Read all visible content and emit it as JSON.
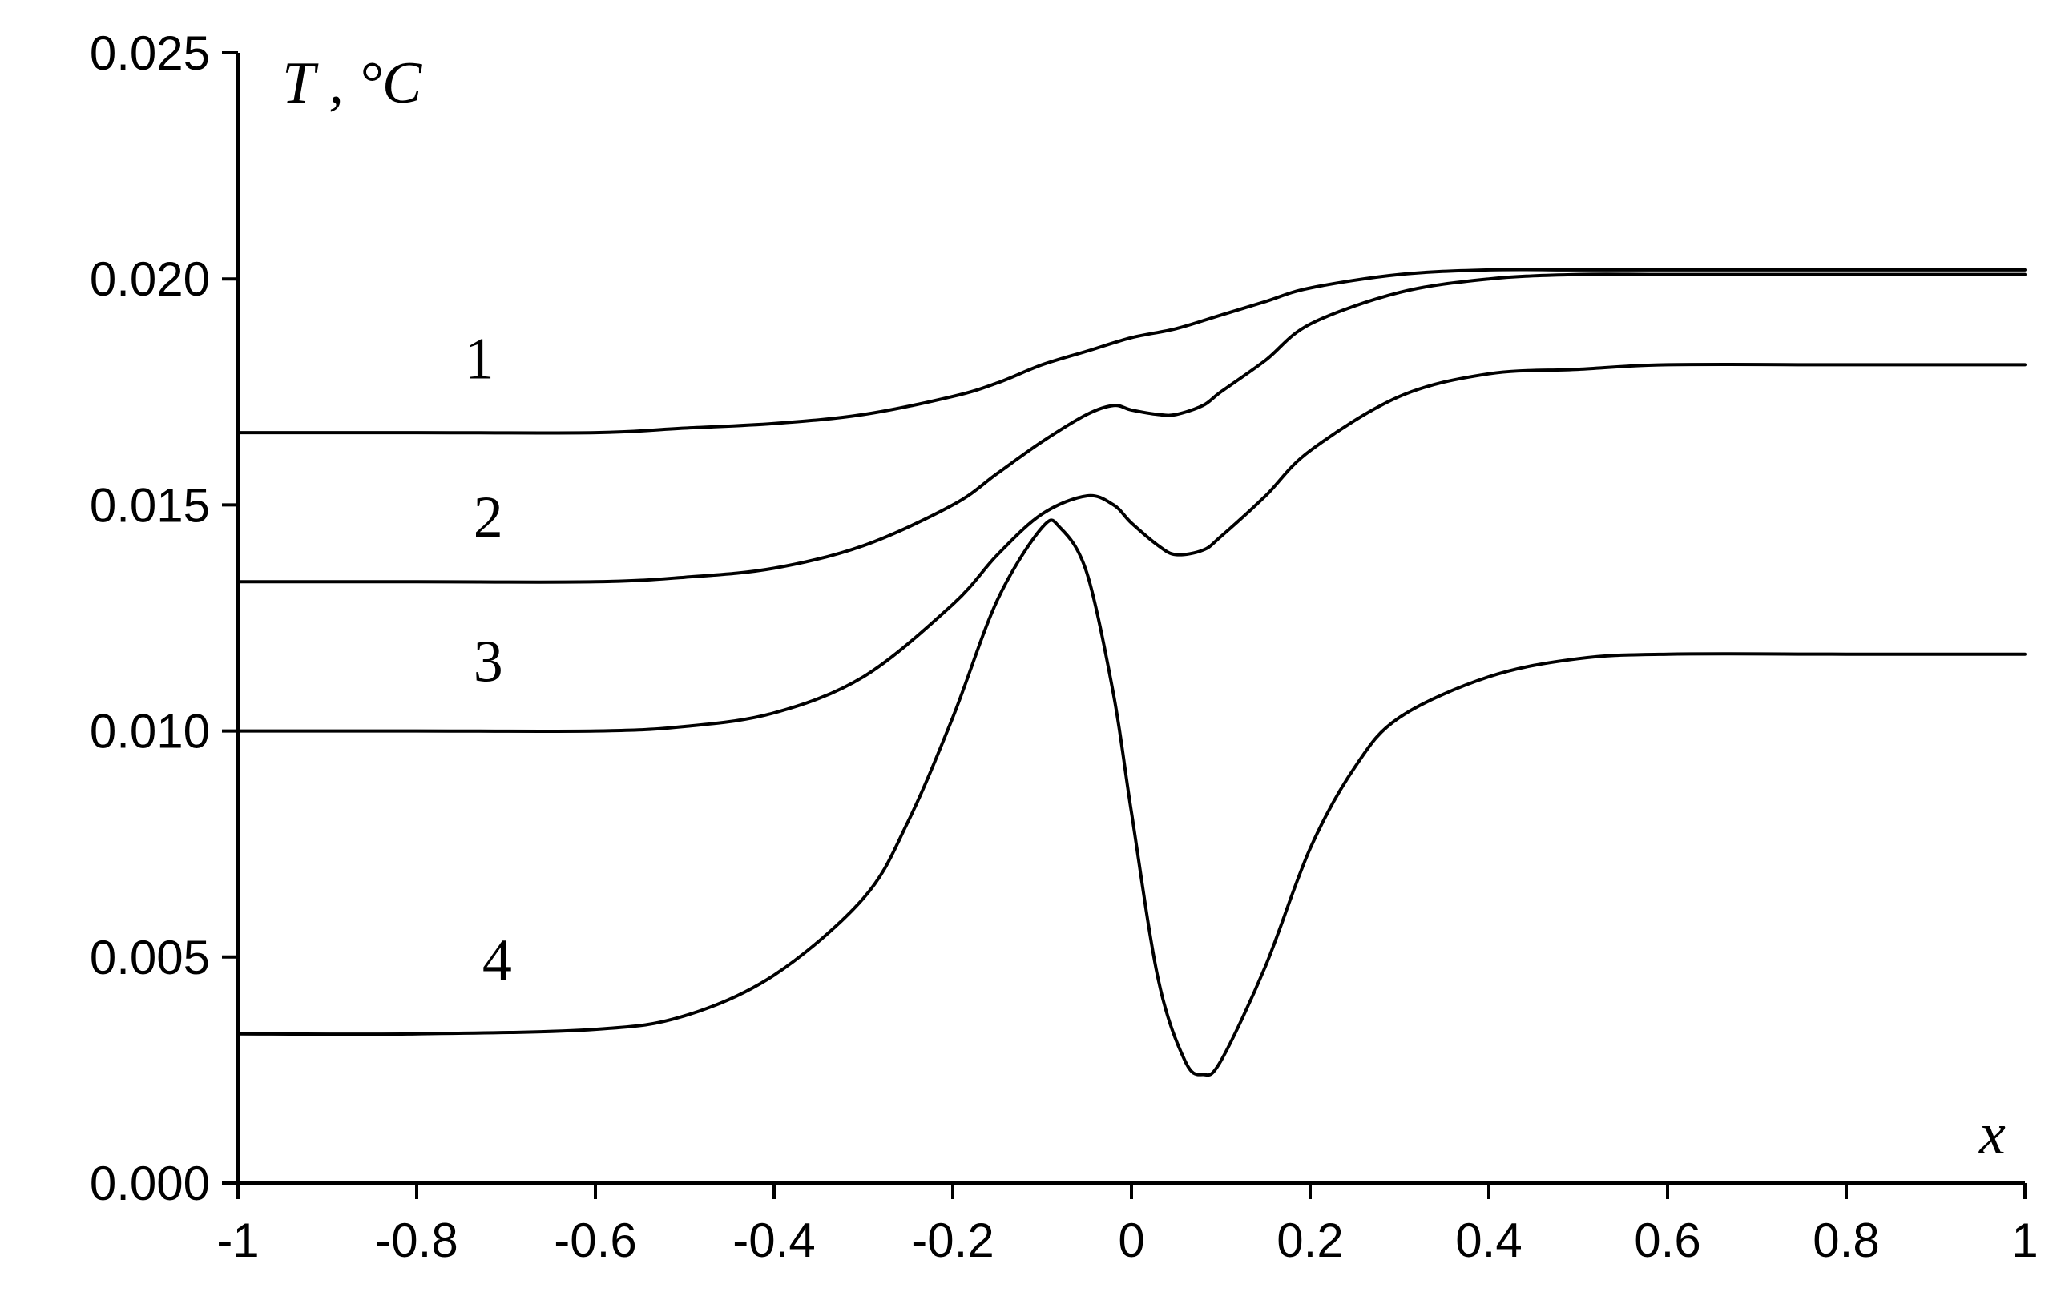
{
  "chart_data": {
    "type": "line",
    "ylabel": "T , °C",
    "xlabel": "x",
    "xlim": [
      -1,
      1
    ],
    "ylim": [
      0,
      0.025
    ],
    "x_ticks": [
      -1,
      -0.8,
      -0.6,
      -0.4,
      -0.2,
      0,
      0.2,
      0.4,
      0.6,
      0.8,
      1
    ],
    "x_tick_labels": [
      "-1",
      "-0.8",
      "-0.6",
      "-0.4",
      "-0.2",
      "0",
      "0.2",
      "0.4",
      "0.6",
      "0.8",
      "1"
    ],
    "y_ticks": [
      0,
      0.005,
      0.01,
      0.015,
      0.02,
      0.025
    ],
    "y_tick_labels": [
      "0.000",
      "0.005",
      "0.010",
      "0.015",
      "0.020",
      "0.025"
    ],
    "grid": false,
    "legend": "none",
    "series": [
      {
        "label": "1",
        "x": [
          -1,
          -0.8,
          -0.6,
          -0.5,
          -0.4,
          -0.3,
          -0.2,
          -0.15,
          -0.1,
          -0.05,
          0,
          0.05,
          0.1,
          0.15,
          0.2,
          0.3,
          0.4,
          0.5,
          0.6,
          0.8,
          1
        ],
        "y": [
          0.0166,
          0.0166,
          0.0166,
          0.0167,
          0.0168,
          0.017,
          0.0174,
          0.0177,
          0.0181,
          0.0184,
          0.0187,
          0.0189,
          0.0192,
          0.0195,
          0.0198,
          0.0201,
          0.0202,
          0.0202,
          0.0202,
          0.0202,
          0.0202
        ]
      },
      {
        "label": "2",
        "x": [
          -1,
          -0.8,
          -0.6,
          -0.5,
          -0.4,
          -0.3,
          -0.2,
          -0.15,
          -0.1,
          -0.05,
          -0.02,
          0,
          0.03,
          0.05,
          0.08,
          0.1,
          0.15,
          0.2,
          0.3,
          0.4,
          0.5,
          0.6,
          0.8,
          1
        ],
        "y": [
          0.0133,
          0.0133,
          0.0133,
          0.0134,
          0.0136,
          0.0141,
          0.015,
          0.0157,
          0.0164,
          0.017,
          0.0172,
          0.0171,
          0.017,
          0.017,
          0.0172,
          0.0175,
          0.0182,
          0.019,
          0.0197,
          0.02,
          0.0201,
          0.0201,
          0.0201,
          0.0201
        ]
      },
      {
        "label": "3",
        "x": [
          -1,
          -0.8,
          -0.6,
          -0.5,
          -0.4,
          -0.3,
          -0.2,
          -0.15,
          -0.1,
          -0.05,
          -0.02,
          0,
          0.03,
          0.05,
          0.08,
          0.1,
          0.15,
          0.2,
          0.3,
          0.4,
          0.5,
          0.6,
          0.8,
          1
        ],
        "y": [
          0.01,
          0.01,
          0.01,
          0.0101,
          0.0104,
          0.0112,
          0.0128,
          0.0139,
          0.0148,
          0.0152,
          0.015,
          0.0146,
          0.0141,
          0.0139,
          0.014,
          0.0143,
          0.0152,
          0.0162,
          0.0174,
          0.0179,
          0.018,
          0.0181,
          0.0181,
          0.0181
        ]
      },
      {
        "label": "4",
        "x": [
          -1,
          -0.8,
          -0.6,
          -0.5,
          -0.4,
          -0.3,
          -0.25,
          -0.2,
          -0.15,
          -0.1,
          -0.08,
          -0.05,
          -0.02,
          0,
          0.03,
          0.06,
          0.08,
          0.1,
          0.15,
          0.2,
          0.25,
          0.3,
          0.4,
          0.5,
          0.6,
          0.8,
          1
        ],
        "y": [
          0.0033,
          0.0033,
          0.0034,
          0.0037,
          0.0046,
          0.0063,
          0.008,
          0.0103,
          0.0129,
          0.0145,
          0.0145,
          0.0135,
          0.0108,
          0.0082,
          0.0045,
          0.0027,
          0.0024,
          0.0027,
          0.0048,
          0.0074,
          0.0092,
          0.0103,
          0.0112,
          0.0116,
          0.0117,
          0.0117,
          0.0117
        ]
      }
    ],
    "curve_labels": [
      {
        "text": "1",
        "x": -0.73,
        "y": 0.0178
      },
      {
        "text": "2",
        "x": -0.72,
        "y": 0.0143
      },
      {
        "text": "3",
        "x": -0.72,
        "y": 0.0111
      },
      {
        "text": "4",
        "x": -0.71,
        "y": 0.0045
      }
    ]
  }
}
